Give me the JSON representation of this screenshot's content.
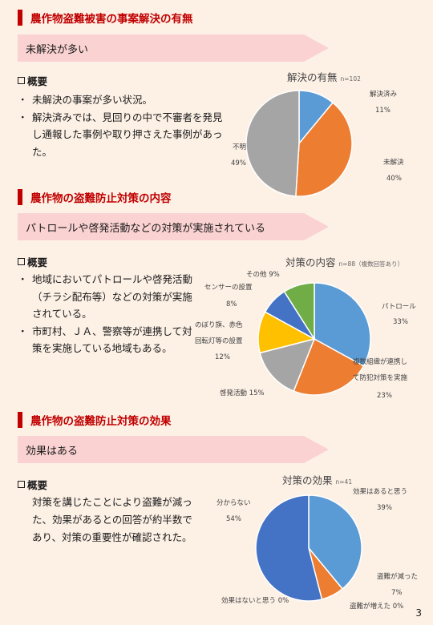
{
  "sections": [
    {
      "title": "農作物盗難被害の事案解決の有無",
      "banner": "未解決が多い",
      "overview_label": "概要",
      "bullets": [
        "未解決の事案が多い状況。",
        "解決済みでは、見回りの中で不審者を発見し通報した事例や取り押さえた事例があった。"
      ]
    },
    {
      "title": "農作物の盗難防止対策の内容",
      "banner": "パトロールや啓発活動などの対策が実施されている",
      "overview_label": "概要",
      "bullets": [
        "地域においてパトロールや啓発活動（チラシ配布等）などの対策が実施されている。",
        "市町村、ＪＡ、警察等が連携して対策を実施している地域もある。"
      ]
    },
    {
      "title": "農作物の盗難防止対策の効果",
      "banner": "効果はある",
      "overview_label": "概要",
      "paragraph": "対策を講じたことにより盗難が減った、効果があるとの回答が約半数であり、対策の重要性が確認された。"
    }
  ],
  "chart_data": [
    {
      "type": "pie",
      "title": "解決の有無",
      "note": "n=102",
      "slices": [
        {
          "label": "解決済み",
          "pct_label": "11%",
          "value": 11,
          "color": "#5b9bd5"
        },
        {
          "label": "未解決",
          "pct_label": "40%",
          "value": 40,
          "color": "#ed7d31"
        },
        {
          "label": "不明",
          "pct_label": "49%",
          "value": 49,
          "color": "#a5a5a5"
        }
      ]
    },
    {
      "type": "pie",
      "title": "対策の内容",
      "note": "n=88（複数回答あり）",
      "slices": [
        {
          "label": "パトロール",
          "pct_label": "33%",
          "value": 33,
          "color": "#5b9bd5"
        },
        {
          "label": "複数組織が連携して防犯対策を実施",
          "pct_label": "23%",
          "value": 23,
          "color": "#ed7d31"
        },
        {
          "label": "啓発活動",
          "pct_label": "15%",
          "value": 15,
          "color": "#a5a5a5"
        },
        {
          "label": "のぼり旗、赤色回転灯等の設置",
          "pct_label": "12%",
          "value": 12,
          "color": "#ffc000"
        },
        {
          "label": "センサーの設置",
          "pct_label": "8%",
          "value": 8,
          "color": "#4472c4"
        },
        {
          "label": "その他",
          "pct_label": "9%",
          "value": 9,
          "color": "#70ad47"
        }
      ]
    },
    {
      "type": "pie",
      "title": "対策の効果",
      "note": "n=41",
      "slices": [
        {
          "label": "効果はあると思う",
          "pct_label": "39%",
          "value": 39,
          "color": "#5b9bd5"
        },
        {
          "label": "盗難が減った",
          "pct_label": "7%",
          "value": 7,
          "color": "#ed7d31"
        },
        {
          "label": "盗難が増えた",
          "pct_label": "0%",
          "value": 0,
          "color": "#a5a5a5"
        },
        {
          "label": "効果はないと思う",
          "pct_label": "0%",
          "value": 0,
          "color": "#ffc000"
        },
        {
          "label": "分からない",
          "pct_label": "54%",
          "value": 54,
          "color": "#4472c4"
        }
      ]
    }
  ],
  "page_number": "3"
}
